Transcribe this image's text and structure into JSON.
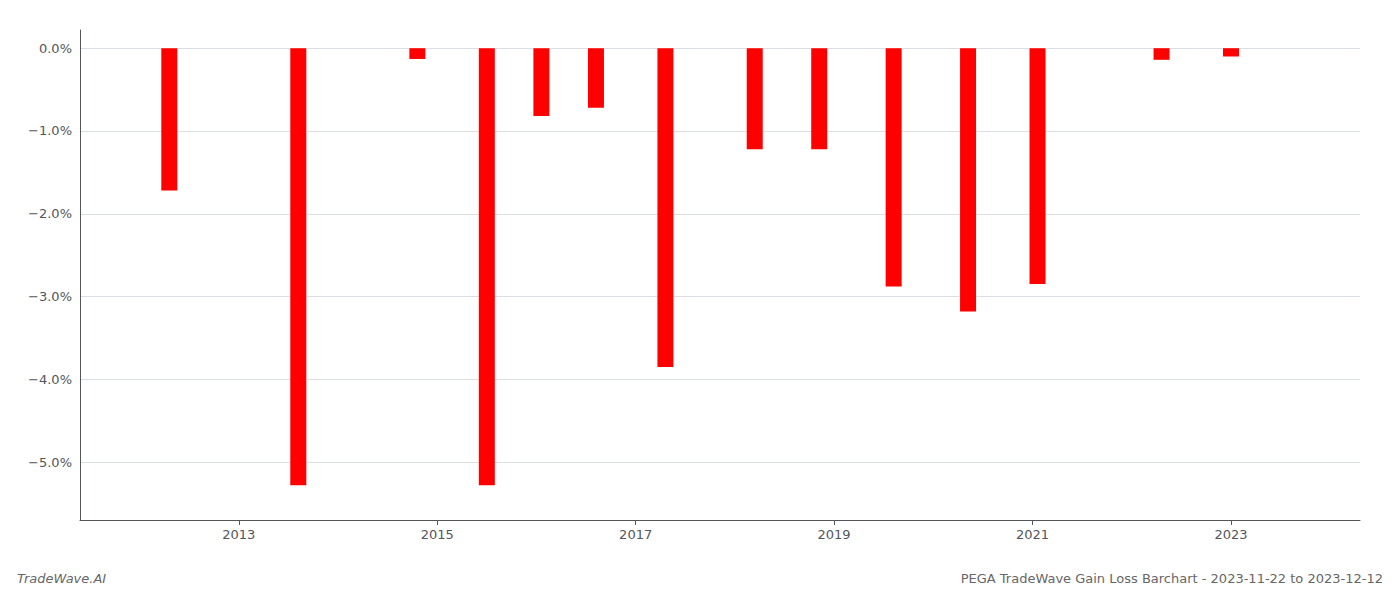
{
  "chart_data": {
    "type": "bar",
    "title": "PEGA TradeWave Gain Loss Barchart - 2023-11-22 to 2023-12-12",
    "annotations": [
      "TradeWave.AI"
    ],
    "x": [
      2012.3,
      2013.6,
      2014.8,
      2015.5,
      2016.05,
      2016.6,
      2017.3,
      2018.2,
      2018.85,
      2019.6,
      2020.35,
      2021.05,
      2022.3,
      2023.0
    ],
    "values": [
      -1.72,
      -5.28,
      -0.13,
      -5.28,
      -0.82,
      -0.72,
      -3.85,
      -1.22,
      -1.22,
      -2.88,
      -3.18,
      -2.85,
      -0.14,
      -0.1
    ],
    "color": "#ff0000",
    "xlim": [
      2011.4,
      2024.3
    ],
    "xticks": [
      2013,
      2015,
      2017,
      2019,
      2021,
      2023
    ],
    "ylim": [
      -5.7,
      0.22
    ],
    "yticks": [
      {
        "value": 0.0,
        "label": "0.0%"
      },
      {
        "value": -1.0,
        "label": "−1.0%"
      },
      {
        "value": -2.0,
        "label": "−2.0%"
      },
      {
        "value": -3.0,
        "label": "−3.0%"
      },
      {
        "value": -4.0,
        "label": "−4.0%"
      },
      {
        "value": -5.0,
        "label": "−5.0%"
      }
    ],
    "grid": true
  }
}
